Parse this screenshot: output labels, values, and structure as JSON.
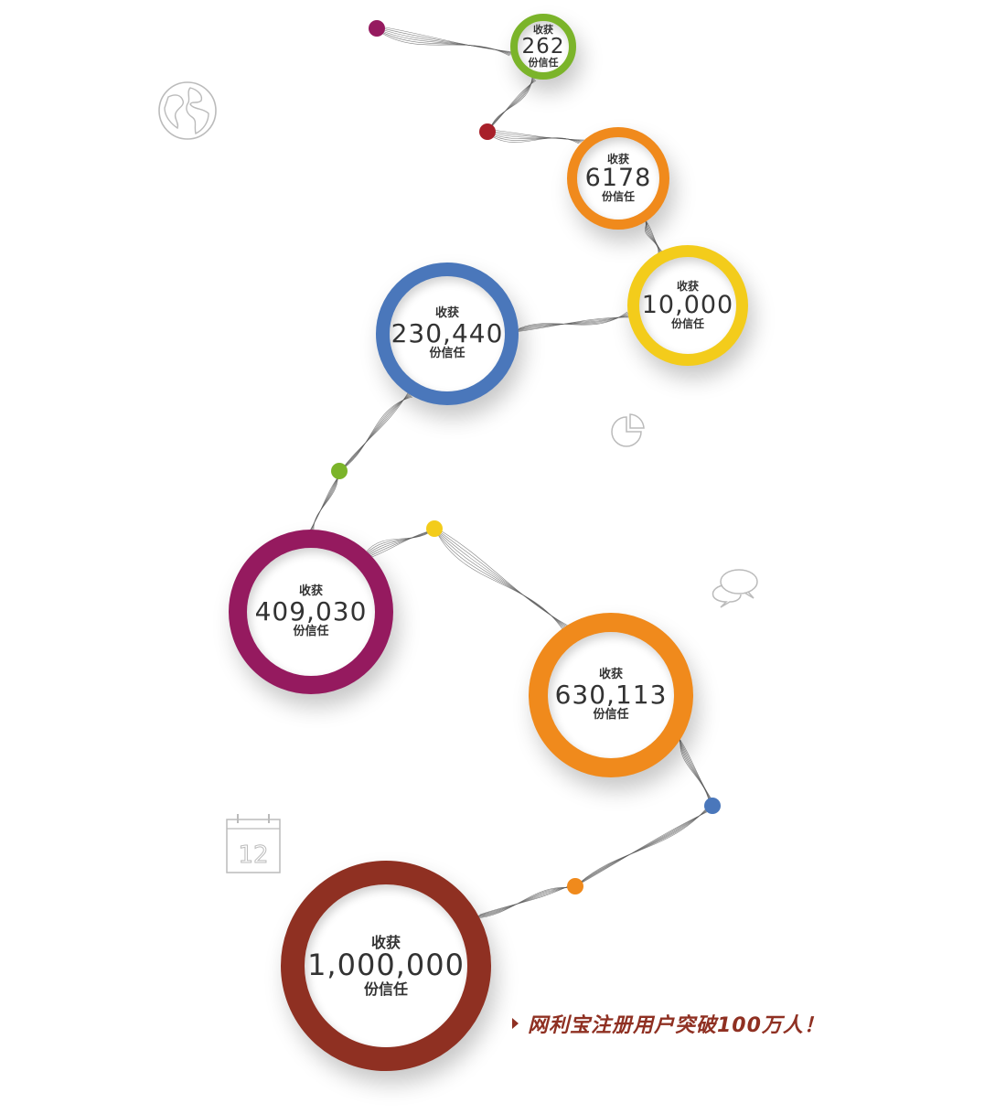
{
  "milestones": [
    {
      "label_top": "收获",
      "value": "262",
      "label_bottom": "份信任",
      "color": "#7bb42a"
    },
    {
      "label_top": "收获",
      "value": "6178",
      "label_bottom": "份信任",
      "color": "#f08a1c"
    },
    {
      "label_top": "收获",
      "value": "10,000",
      "label_bottom": "份信任",
      "color": "#f3cc1b"
    },
    {
      "label_top": "收获",
      "value": "230,440",
      "label_bottom": "份信任",
      "color": "#4a77bb"
    },
    {
      "label_top": "收获",
      "value": "409,030",
      "label_bottom": "份信任",
      "color": "#951a5f"
    },
    {
      "label_top": "收获",
      "value": "630,113",
      "label_bottom": "份信任",
      "color": "#f08a1c"
    },
    {
      "label_top": "收获",
      "value": "1,000,000",
      "label_bottom": "份信任",
      "color": "#8f3022"
    }
  ],
  "dots": [
    {
      "color": "#951a5f"
    },
    {
      "color": "#a8202a"
    },
    {
      "color": "#7bb42a"
    },
    {
      "color": "#f3cc1b"
    },
    {
      "color": "#4a77bb"
    },
    {
      "color": "#f08a1c"
    }
  ],
  "icons": [
    "globe-icon",
    "pie-chart-icon",
    "chat-bubbles-icon",
    "calendar-icon"
  ],
  "calendar_day": "12",
  "headline": "网利宝注册用户突破100万人！",
  "headline_color": "#8f3022"
}
